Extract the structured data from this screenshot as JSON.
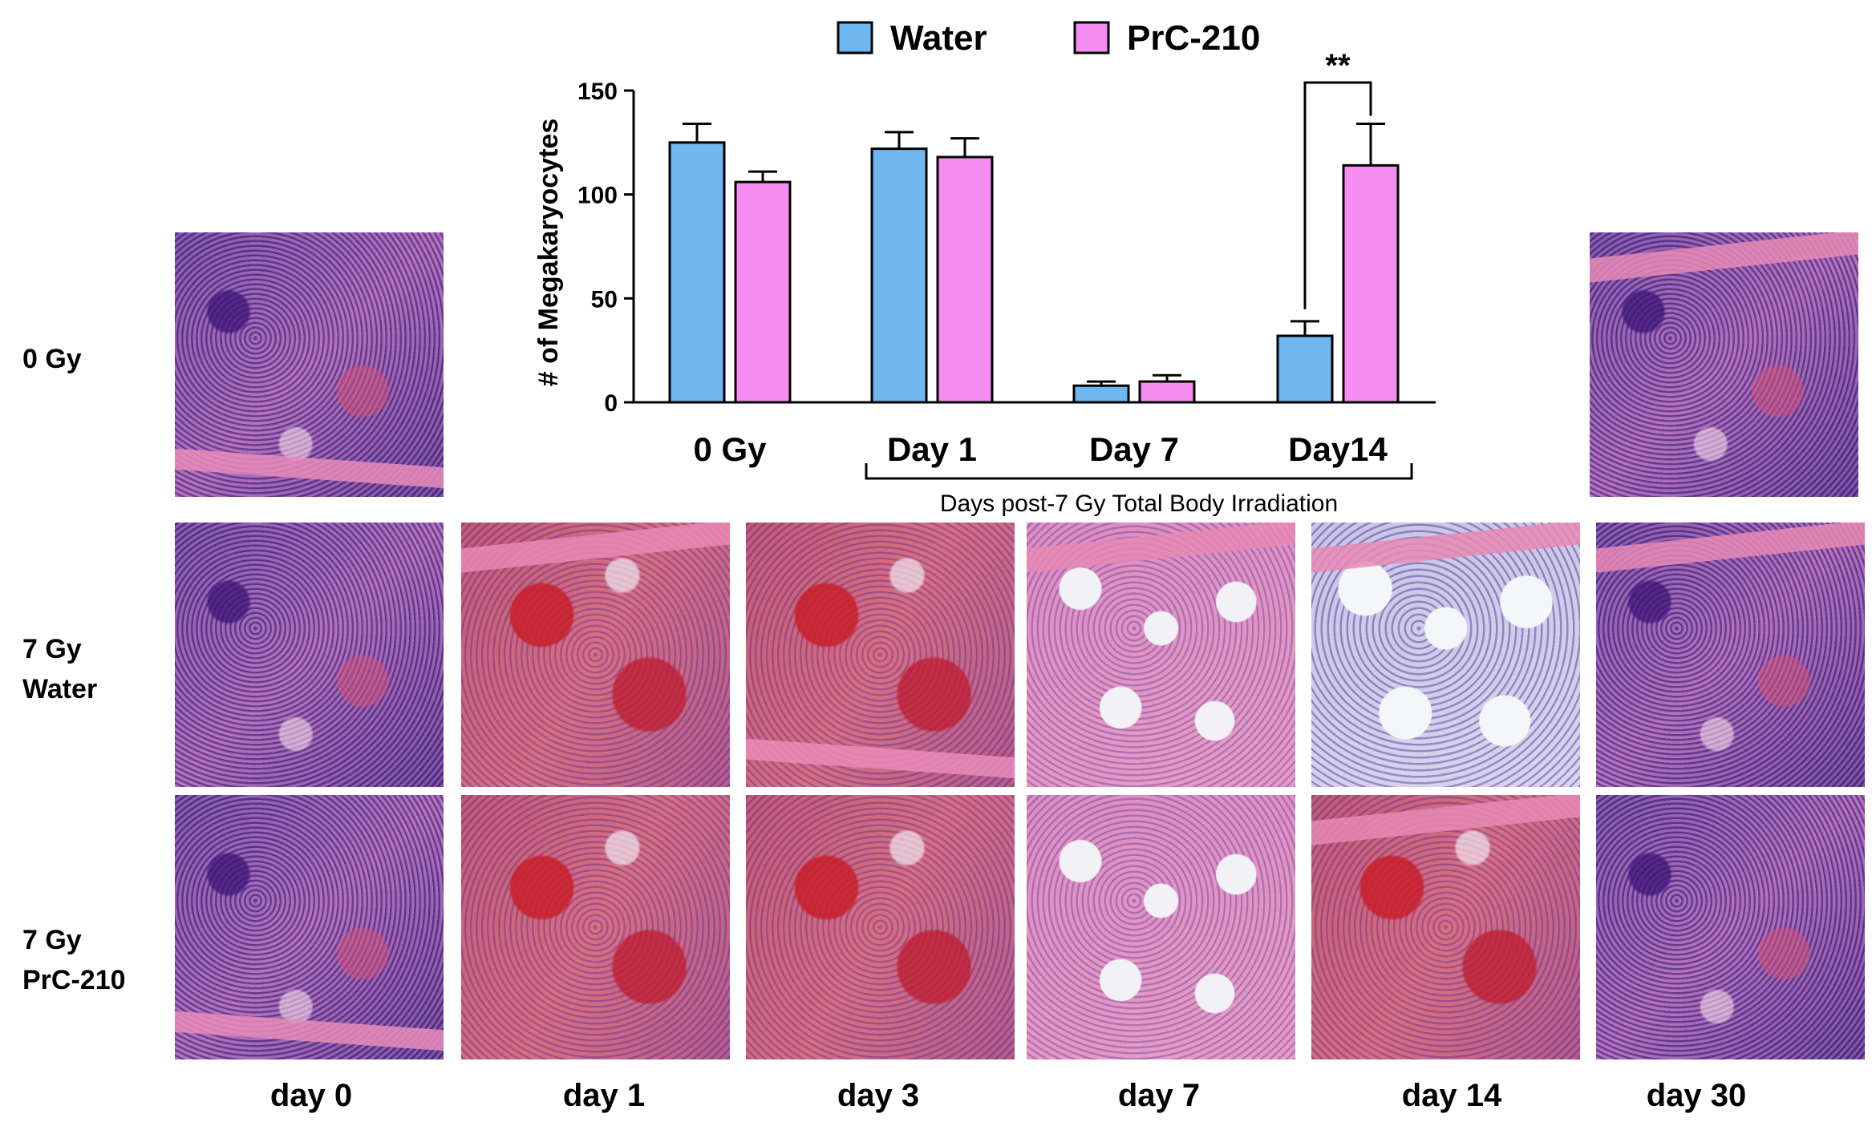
{
  "chart_data": {
    "type": "bar",
    "ylabel": "# of Megakaryocytes",
    "ylim": [
      0,
      150
    ],
    "yticks": [
      "0",
      "50",
      "100",
      "150"
    ],
    "categories": [
      "0 Gy",
      "Day 1",
      "Day 7",
      "Day14"
    ],
    "series": [
      {
        "name": "Water",
        "color": "#6fb7f0",
        "values": [
          125,
          122,
          8,
          32
        ],
        "errors": [
          9,
          8,
          2,
          7
        ]
      },
      {
        "name": "PrC-210",
        "color": "#f58cf0",
        "values": [
          106,
          118,
          10,
          114
        ],
        "errors": [
          5,
          9,
          3,
          20
        ]
      }
    ],
    "group_bracket_label": "Days post-7 Gy Total Body Irradiation",
    "significance": {
      "label": "**",
      "category": "Day14"
    },
    "legend_position": "top"
  },
  "histology": {
    "row_labels": [
      {
        "lines": [
          "0 Gy"
        ]
      },
      {
        "lines": [
          "7 Gy",
          "Water"
        ]
      },
      {
        "lines": [
          "7 Gy",
          "PrC-210"
        ]
      }
    ],
    "column_labels": [
      "day 0",
      "day 1",
      "day 3",
      "day 7",
      "day 14",
      "day 30"
    ]
  }
}
